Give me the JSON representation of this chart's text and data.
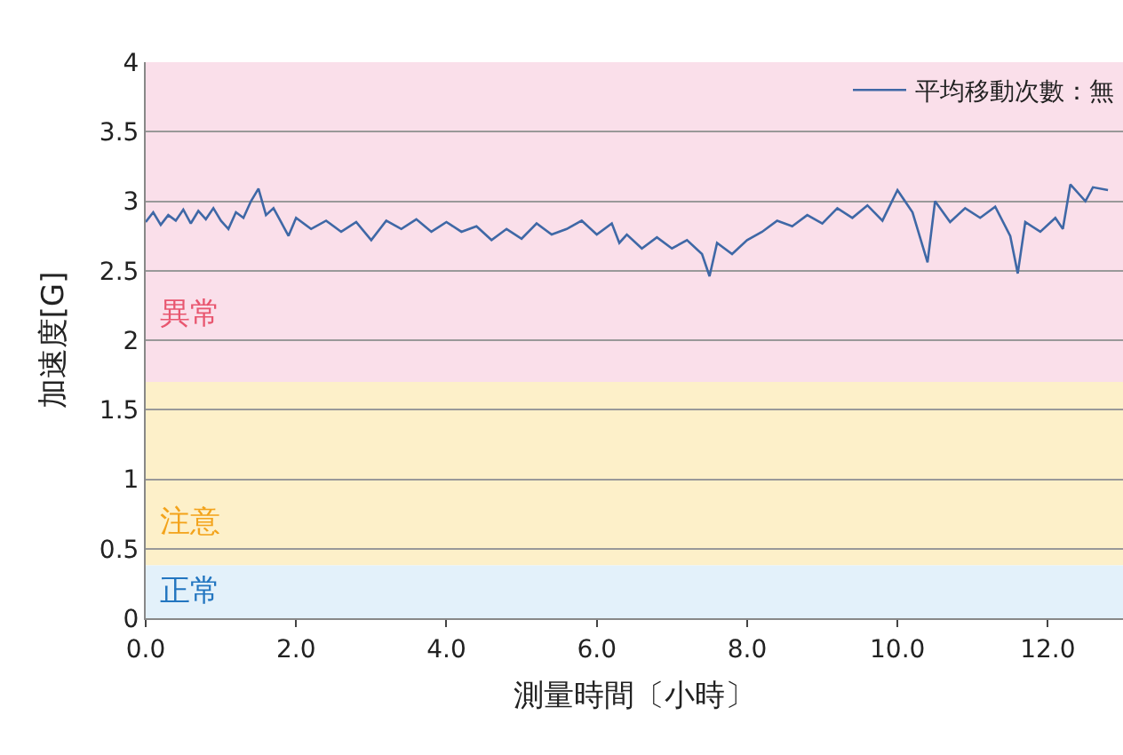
{
  "chart_data": {
    "type": "line",
    "xlabel": "測量時間〔小時〕",
    "ylabel": "加速度[G]",
    "x": [
      0.0,
      0.1,
      0.2,
      0.3,
      0.4,
      0.5,
      0.6,
      0.7,
      0.8,
      0.9,
      1.0,
      1.1,
      1.2,
      1.3,
      1.4,
      1.5,
      1.6,
      1.7,
      1.8,
      1.9,
      2.0,
      2.2,
      2.4,
      2.6,
      2.8,
      3.0,
      3.2,
      3.4,
      3.6,
      3.8,
      4.0,
      4.2,
      4.4,
      4.6,
      4.8,
      5.0,
      5.2,
      5.4,
      5.6,
      5.8,
      6.0,
      6.2,
      6.3,
      6.4,
      6.6,
      6.8,
      7.0,
      7.2,
      7.4,
      7.5,
      7.6,
      7.8,
      8.0,
      8.2,
      8.4,
      8.6,
      8.8,
      9.0,
      9.2,
      9.4,
      9.6,
      9.8,
      10.0,
      10.2,
      10.4,
      10.5,
      10.7,
      10.9,
      11.1,
      11.3,
      11.5,
      11.6,
      11.7,
      11.9,
      12.1,
      12.2,
      12.3,
      12.5,
      12.6,
      12.8
    ],
    "series": [
      {
        "name": "平均移動次數：無",
        "color": "#3f68a6",
        "values": [
          2.85,
          2.92,
          2.83,
          2.9,
          2.86,
          2.94,
          2.84,
          2.93,
          2.87,
          2.95,
          2.86,
          2.8,
          2.92,
          2.88,
          3.0,
          3.09,
          2.9,
          2.95,
          2.85,
          2.75,
          2.88,
          2.8,
          2.86,
          2.78,
          2.85,
          2.72,
          2.86,
          2.8,
          2.87,
          2.78,
          2.85,
          2.78,
          2.82,
          2.72,
          2.8,
          2.73,
          2.84,
          2.76,
          2.8,
          2.86,
          2.76,
          2.84,
          2.7,
          2.76,
          2.66,
          2.74,
          2.66,
          2.72,
          2.62,
          2.46,
          2.7,
          2.62,
          2.72,
          2.78,
          2.86,
          2.82,
          2.9,
          2.84,
          2.95,
          2.88,
          2.97,
          2.86,
          3.08,
          2.92,
          2.56,
          3.0,
          2.85,
          2.95,
          2.88,
          2.96,
          2.75,
          2.48,
          2.85,
          2.78,
          2.88,
          2.8,
          3.12,
          3.0,
          3.1,
          3.08
        ]
      }
    ],
    "xlim": [
      0,
      13
    ],
    "xticks": [
      {
        "value": 0,
        "label": "0.0"
      },
      {
        "value": 2,
        "label": "2.0"
      },
      {
        "value": 4,
        "label": "4.0"
      },
      {
        "value": 6,
        "label": "6.0"
      },
      {
        "value": 8,
        "label": "8.0"
      },
      {
        "value": 10,
        "label": "10.0"
      },
      {
        "value": 12,
        "label": "12.0"
      }
    ],
    "ylim": [
      0,
      4
    ],
    "yticks": [
      0,
      0.5,
      1,
      1.5,
      2,
      2.5,
      3,
      3.5,
      4
    ],
    "bands": [
      {
        "axis": "y",
        "from": 1.7,
        "to": 4,
        "label": "異常",
        "color": "#fadfea"
      },
      {
        "axis": "y",
        "from": 0.38,
        "to": 1.7,
        "label": "注意",
        "color": "#fdf0c9"
      },
      {
        "axis": "y",
        "from": 0,
        "to": 0.38,
        "label": "正常",
        "color": "#e3f1fa"
      }
    ],
    "grid": "y",
    "legend": "top right",
    "line_style": "solid",
    "marker": "none"
  }
}
